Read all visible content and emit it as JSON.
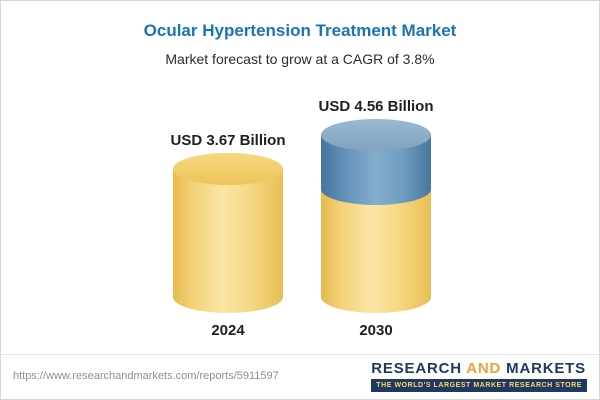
{
  "chart_data": {
    "type": "bar",
    "title": "Ocular Hypertension Treatment Market",
    "subtitle": "Market forecast to grow at a CAGR of 3.8%",
    "categories": [
      "2024",
      "2030"
    ],
    "values": [
      3.67,
      4.56
    ],
    "unit": "USD Billion",
    "value_labels": [
      "USD 3.67 Billion",
      "USD 4.56 Billion"
    ],
    "cagr_percent": 3.8,
    "ylim": [
      0,
      5
    ],
    "legend": "none",
    "grid": "off",
    "bar_colors": {
      "base": "#F5D77E",
      "growth_cap": "#6E9CC0"
    },
    "title_color": "#1B73B8"
  },
  "footer": {
    "source_url": "https://www.researchandmarkets.com/reports/5911597",
    "logo": {
      "research": "RESEARCH",
      "and": "AND",
      "markets": "MARKETS",
      "tagline": "THE WORLD'S LARGEST MARKET RESEARCH STORE"
    }
  }
}
